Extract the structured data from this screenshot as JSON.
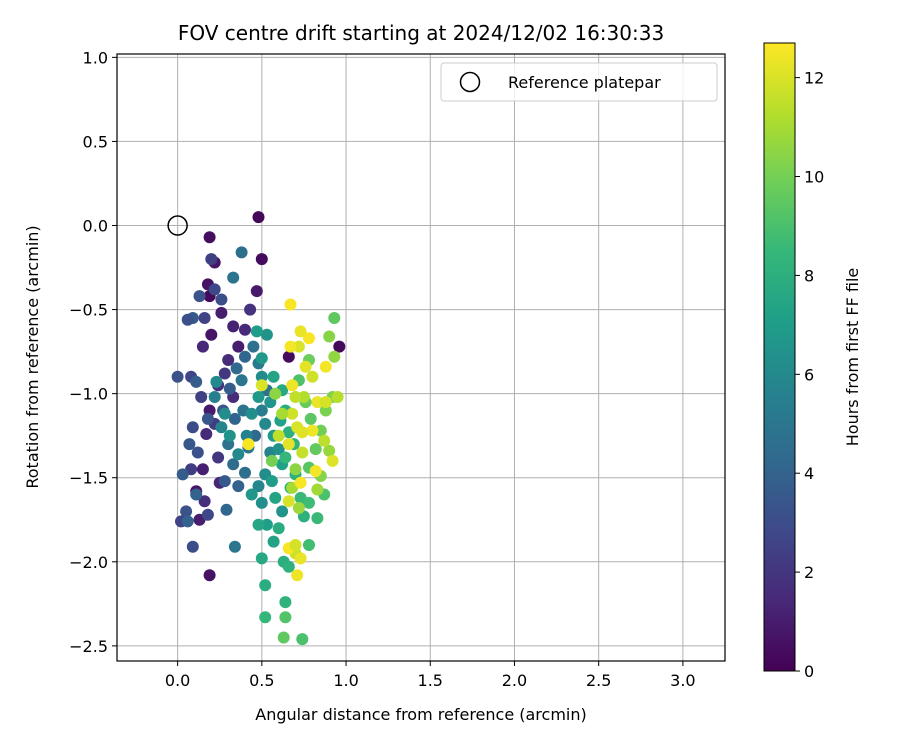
{
  "chart_data": {
    "type": "scatter",
    "title": "FOV centre drift starting at 2024/12/02 16:30:33",
    "xlabel": "Angular distance from reference (arcmin)",
    "ylabel": "Rotation from reference (arcmin)",
    "xlim": [
      -0.36,
      3.25
    ],
    "ylim": [
      -2.59,
      1.02
    ],
    "xticks": [
      0.0,
      0.5,
      1.0,
      1.5,
      2.0,
      2.5,
      3.0
    ],
    "xtick_labels": [
      "0.0",
      "0.5",
      "1.0",
      "1.5",
      "2.0",
      "2.5",
      "3.0"
    ],
    "yticks": [
      1.0,
      0.5,
      0.0,
      -0.5,
      -1.0,
      -1.5,
      -2.0,
      -2.5
    ],
    "ytick_labels": [
      "1.0",
      "0.5",
      "0.0",
      "−0.5",
      "−1.0",
      "−1.5",
      "−2.0",
      "−2.5"
    ],
    "grid": true,
    "legend": {
      "placement": "top-right",
      "entries": [
        "Reference platepar"
      ]
    },
    "reference_point": {
      "x": 0.0,
      "y": 0.0,
      "marker": "open-circle"
    },
    "colorbar": {
      "label": "Hours from first FF file",
      "range": [
        0,
        12.7
      ],
      "ticks": [
        0,
        2,
        4,
        6,
        8,
        10,
        12
      ],
      "tick_labels": [
        "0",
        "2",
        "4",
        "6",
        "8",
        "10",
        "12"
      ],
      "colormap": "viridis"
    },
    "colormap_stops": [
      "#440154",
      "#482878",
      "#3e4989",
      "#31688e",
      "#26828e",
      "#1f9e89",
      "#35b779",
      "#6ece58",
      "#b5de2b",
      "#fde725"
    ],
    "series": [
      {
        "points": [
          [
            0.48,
            0.05,
            0.2
          ],
          [
            0.19,
            -0.07,
            0.5
          ],
          [
            0.5,
            -0.2,
            0.4
          ],
          [
            0.22,
            -0.22,
            0.8
          ],
          [
            0.18,
            -0.35,
            0.6
          ],
          [
            0.47,
            -0.39,
            0.9
          ],
          [
            0.19,
            -0.42,
            0.3
          ],
          [
            0.26,
            -0.52,
            1.0
          ],
          [
            0.33,
            -0.6,
            1.2
          ],
          [
            0.2,
            -0.65,
            0.7
          ],
          [
            0.66,
            -0.78,
            0.4
          ],
          [
            0.96,
            -0.72,
            0.3
          ],
          [
            0.15,
            -0.72,
            1.4
          ],
          [
            0.3,
            -0.8,
            1.6
          ],
          [
            0.24,
            -0.95,
            1.8
          ],
          [
            0.19,
            -1.1,
            0.9
          ],
          [
            0.17,
            -1.24,
            1.5
          ],
          [
            0.24,
            -1.38,
            2.0
          ],
          [
            0.15,
            -1.45,
            1.1
          ],
          [
            0.25,
            -1.53,
            1.3
          ],
          [
            0.11,
            -1.58,
            0.8
          ],
          [
            0.16,
            -1.64,
            1.7
          ],
          [
            0.13,
            -1.75,
            1.0
          ],
          [
            0.19,
            -2.08,
            0.6
          ],
          [
            0.43,
            -0.5,
            1.9
          ],
          [
            0.4,
            -0.62,
            1.4
          ],
          [
            0.36,
            -0.72,
            1.1
          ],
          [
            0.28,
            -0.88,
            2.1
          ],
          [
            0.33,
            -1.02,
            1.6
          ],
          [
            0.22,
            -1.18,
            2.2
          ],
          [
            0.2,
            -0.2,
            2.4
          ],
          [
            0.22,
            -0.38,
            2.8
          ],
          [
            0.26,
            -0.44,
            3.0
          ],
          [
            0.13,
            -0.42,
            3.3
          ],
          [
            0.09,
            -0.55,
            3.6
          ],
          [
            0.16,
            -0.55,
            2.6
          ],
          [
            0.06,
            -0.56,
            3.1
          ],
          [
            0.08,
            -0.9,
            2.7
          ],
          [
            0.0,
            -0.9,
            3.2
          ],
          [
            0.11,
            -0.93,
            3.8
          ],
          [
            0.14,
            -1.02,
            2.5
          ],
          [
            0.18,
            -1.15,
            3.4
          ],
          [
            0.09,
            -1.2,
            2.9
          ],
          [
            0.07,
            -1.3,
            3.5
          ],
          [
            0.12,
            -1.35,
            3.2
          ],
          [
            0.08,
            -1.45,
            2.3
          ],
          [
            0.03,
            -1.48,
            3.7
          ],
          [
            0.11,
            -1.6,
            4.0
          ],
          [
            0.05,
            -1.7,
            3.3
          ],
          [
            0.02,
            -1.76,
            2.6
          ],
          [
            0.06,
            -1.76,
            3.9
          ],
          [
            0.09,
            -1.91,
            3.0
          ],
          [
            0.18,
            -1.72,
            2.8
          ],
          [
            0.29,
            -1.69,
            4.2
          ],
          [
            0.28,
            -1.52,
            3.6
          ],
          [
            0.33,
            -1.42,
            4.5
          ],
          [
            0.36,
            -1.55,
            3.9
          ],
          [
            0.4,
            -1.47,
            4.6
          ],
          [
            0.3,
            -1.3,
            4.8
          ],
          [
            0.34,
            -1.15,
            4.1
          ],
          [
            0.39,
            -1.1,
            4.9
          ],
          [
            0.27,
            -1.1,
            3.4
          ],
          [
            0.31,
            -0.97,
            3.7
          ],
          [
            0.35,
            -0.85,
            4.4
          ],
          [
            0.38,
            -0.92,
            5.0
          ],
          [
            0.4,
            -0.78,
            4.2
          ],
          [
            0.45,
            -0.72,
            4.7
          ],
          [
            0.48,
            -0.82,
            5.2
          ],
          [
            0.53,
            -0.98,
            4.8
          ],
          [
            0.5,
            -1.1,
            5.4
          ],
          [
            0.46,
            -1.25,
            4.3
          ],
          [
            0.42,
            -1.32,
            5.1
          ],
          [
            0.38,
            -0.16,
            4.6
          ],
          [
            0.33,
            -0.31,
            4.9
          ],
          [
            0.34,
            -1.91,
            5.0
          ],
          [
            0.22,
            -1.02,
            5.5
          ],
          [
            0.26,
            -1.2,
            5.8
          ],
          [
            0.23,
            -0.93,
            6.0
          ],
          [
            0.28,
            -1.12,
            6.2
          ],
          [
            0.31,
            -1.25,
            6.5
          ],
          [
            0.36,
            -1.36,
            6.0
          ],
          [
            0.41,
            -1.25,
            5.6
          ],
          [
            0.44,
            -1.12,
            6.3
          ],
          [
            0.48,
            -1.02,
            6.8
          ],
          [
            0.5,
            -0.9,
            6.1
          ],
          [
            0.55,
            -1.05,
            6.6
          ],
          [
            0.52,
            -1.18,
            6.0
          ],
          [
            0.57,
            -1.25,
            6.9
          ],
          [
            0.55,
            -1.35,
            5.7
          ],
          [
            0.6,
            -1.33,
            6.4
          ],
          [
            0.52,
            -1.48,
            6.2
          ],
          [
            0.48,
            -1.55,
            5.9
          ],
          [
            0.44,
            -1.6,
            6.7
          ],
          [
            0.5,
            -1.65,
            6.3
          ],
          [
            0.56,
            -1.52,
            7.0
          ],
          [
            0.62,
            -1.42,
            7.2
          ],
          [
            0.58,
            -1.62,
            7.4
          ],
          [
            0.62,
            -1.7,
            6.6
          ],
          [
            0.53,
            -1.78,
            7.1
          ],
          [
            0.48,
            -1.78,
            7.5
          ],
          [
            0.6,
            -1.8,
            7.8
          ],
          [
            0.57,
            -1.88,
            7.3
          ],
          [
            0.5,
            -1.98,
            7.6
          ],
          [
            0.63,
            -2.0,
            7.9
          ],
          [
            0.66,
            -2.03,
            8.1
          ],
          [
            0.53,
            -0.65,
            6.5
          ],
          [
            0.5,
            -0.79,
            6.8
          ],
          [
            0.47,
            -0.63,
            7.0
          ],
          [
            0.57,
            -0.9,
            7.4
          ],
          [
            0.62,
            -0.98,
            7.7
          ],
          [
            0.64,
            -1.1,
            7.9
          ],
          [
            0.61,
            -1.16,
            7.2
          ],
          [
            0.66,
            -1.23,
            8.0
          ],
          [
            0.69,
            -1.3,
            8.2
          ],
          [
            0.64,
            -1.38,
            8.4
          ],
          [
            0.7,
            -1.48,
            8.1
          ],
          [
            0.67,
            -1.56,
            8.3
          ],
          [
            0.73,
            -1.62,
            8.5
          ],
          [
            0.78,
            -1.65,
            8.7
          ],
          [
            0.75,
            -1.73,
            8.0
          ],
          [
            0.83,
            -1.74,
            8.6
          ],
          [
            0.87,
            -1.6,
            9.0
          ],
          [
            0.78,
            -1.9,
            8.8
          ],
          [
            0.64,
            -2.24,
            8.2
          ],
          [
            0.52,
            -2.14,
            7.9
          ],
          [
            0.52,
            -2.33,
            8.4
          ],
          [
            0.64,
            -2.33,
            9.2
          ],
          [
            0.63,
            -2.45,
            9.5
          ],
          [
            0.74,
            -2.46,
            9.0
          ],
          [
            0.78,
            -1.44,
            9.3
          ],
          [
            0.82,
            -1.33,
            9.6
          ],
          [
            0.85,
            -1.22,
            9.9
          ],
          [
            0.79,
            -1.15,
            9.4
          ],
          [
            0.76,
            -1.05,
            9.7
          ],
          [
            0.72,
            -0.92,
            9.1
          ],
          [
            0.78,
            -0.8,
            9.8
          ],
          [
            0.88,
            -1.1,
            10.1
          ],
          [
            0.9,
            -0.66,
            10.4
          ],
          [
            0.93,
            -0.55,
            9.5
          ],
          [
            0.93,
            -0.78,
            10.6
          ],
          [
            0.92,
            -1.02,
            10.2
          ],
          [
            0.9,
            -1.34,
            10.7
          ],
          [
            0.85,
            -1.49,
            10.3
          ],
          [
            0.83,
            -1.57,
            10.9
          ],
          [
            0.7,
            -1.45,
            10.5
          ],
          [
            0.68,
            -1.56,
            11.0
          ],
          [
            0.72,
            -1.68,
            10.8
          ],
          [
            0.75,
            -1.02,
            11.2
          ],
          [
            0.7,
            -1.02,
            11.5
          ],
          [
            0.68,
            -1.12,
            11.8
          ],
          [
            0.71,
            -1.2,
            12.0
          ],
          [
            0.66,
            -1.3,
            12.2
          ],
          [
            0.74,
            -1.35,
            11.6
          ],
          [
            0.8,
            -1.22,
            12.4
          ],
          [
            0.83,
            -1.05,
            12.3
          ],
          [
            0.88,
            -1.05,
            11.9
          ],
          [
            0.95,
            -1.02,
            11.3
          ],
          [
            0.92,
            -1.4,
            12.1
          ],
          [
            0.87,
            -1.28,
            11.4
          ],
          [
            0.82,
            -1.46,
            12.5
          ],
          [
            0.73,
            -1.53,
            12.6
          ],
          [
            0.66,
            -1.64,
            12.0
          ],
          [
            0.7,
            -1.95,
            11.7
          ],
          [
            0.73,
            -1.98,
            12.3
          ],
          [
            0.71,
            -2.08,
            12.4
          ],
          [
            0.76,
            -0.84,
            12.2
          ],
          [
            0.8,
            -0.9,
            11.8
          ],
          [
            0.72,
            -0.72,
            12.0
          ],
          [
            0.67,
            -0.72,
            12.5
          ],
          [
            0.78,
            -0.67,
            12.6
          ],
          [
            0.67,
            -0.47,
            12.6
          ],
          [
            0.88,
            -0.84,
            12.5
          ],
          [
            0.73,
            -0.63,
            12.3
          ],
          [
            0.68,
            -0.95,
            12.4
          ],
          [
            0.74,
            -1.23,
            12.1
          ],
          [
            0.62,
            -1.12,
            11.0
          ],
          [
            0.58,
            -1.0,
            10.5
          ],
          [
            0.6,
            -1.25,
            11.5
          ],
          [
            0.56,
            -1.4,
            10.0
          ],
          [
            0.5,
            -0.95,
            12.0
          ],
          [
            0.42,
            -1.3,
            12.6
          ],
          [
            0.66,
            -1.92,
            12.6
          ],
          [
            0.7,
            -1.9,
            11.9
          ]
        ]
      }
    ]
  }
}
